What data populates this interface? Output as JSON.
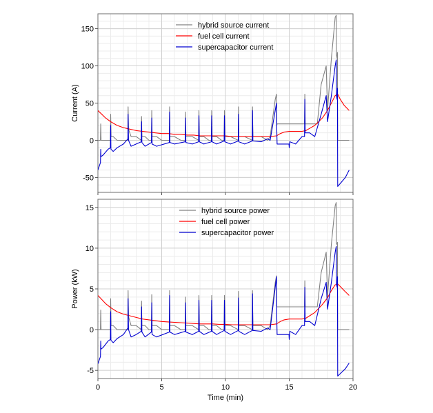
{
  "figure": {
    "xlabel": "Time (min)"
  },
  "chart_data": [
    {
      "type": "line",
      "title": "",
      "xlabel": "Time (min)",
      "ylabel": "Current (A)",
      "xlim": [
        0,
        20
      ],
      "ylim": [
        -70,
        170
      ],
      "xticks": [
        0,
        5,
        10,
        15,
        20
      ],
      "yticks": [
        -50,
        0,
        50,
        100,
        150
      ],
      "xtick_labels": [
        "0",
        "5",
        "10",
        "15",
        "20"
      ],
      "ytick_labels": [
        "-50",
        "0",
        "50",
        "100",
        "150"
      ],
      "grid": true,
      "legend_position": "top-center",
      "series": [
        {
          "name": "hybrid source current",
          "color": "#808080",
          "x": [
            0,
            0.2,
            0.22,
            0.25,
            0.6,
            0.8,
            0.98,
            1.0,
            1.03,
            1.2,
            1.5,
            2.0,
            2.35,
            2.37,
            2.4,
            2.6,
            3.0,
            3.4,
            3.42,
            3.45,
            3.7,
            4.0,
            4.2,
            4.22,
            4.25,
            4.6,
            5.0,
            5.5,
            5.6,
            5.62,
            5.65,
            6.0,
            6.5,
            6.85,
            6.87,
            6.9,
            7.4,
            7.9,
            7.92,
            7.95,
            8.3,
            8.7,
            8.9,
            8.92,
            8.95,
            9.3,
            9.7,
            9.9,
            9.92,
            9.95,
            10.4,
            11.0,
            11.02,
            11.05,
            11.5,
            12.1,
            12.12,
            12.15,
            12.8,
            13.3,
            13.5,
            13.9,
            14.0,
            14.02,
            14.05,
            14.5,
            15.0,
            15.5,
            16.0,
            16.2,
            16.22,
            16.25,
            16.6,
            17.0,
            17.2,
            17.5,
            17.9,
            18.0,
            18.3,
            18.6,
            18.68,
            18.7,
            18.75,
            18.78,
            18.8,
            19.0,
            19.5,
            19.7
          ],
          "y": [
            0,
            0,
            22,
            0,
            0,
            0,
            0,
            35,
            5,
            5,
            0,
            0,
            0,
            45,
            15,
            5,
            5,
            0,
            32,
            5,
            5,
            0,
            0,
            40,
            5,
            5,
            0,
            0,
            0,
            45,
            5,
            5,
            0,
            0,
            38,
            5,
            5,
            0,
            40,
            5,
            5,
            0,
            0,
            40,
            5,
            5,
            0,
            0,
            40,
            5,
            5,
            0,
            45,
            5,
            5,
            0,
            45,
            5,
            5,
            0,
            5,
            55,
            62,
            20,
            22,
            22,
            22,
            22,
            22,
            22,
            62,
            22,
            22,
            22,
            22,
            75,
            100,
            40,
            110,
            165,
            168,
            115,
            110,
            118,
            0,
            0,
            0,
            0
          ]
        },
        {
          "name": "fuel cell current",
          "color": "#ff0000",
          "x": [
            0,
            0.3,
            0.6,
            1.0,
            1.5,
            2.0,
            2.5,
            3.0,
            3.5,
            4.0,
            4.5,
            5.0,
            5.5,
            6.0,
            6.5,
            7.0,
            7.5,
            8.0,
            8.5,
            9.0,
            9.5,
            10.0,
            10.5,
            11.0,
            11.5,
            12.0,
            12.5,
            13.0,
            13.5,
            14.0,
            14.3,
            14.6,
            15.0,
            15.5,
            16.0,
            16.3,
            16.6,
            17.0,
            17.3,
            17.6,
            18.0,
            18.3,
            18.6,
            18.8,
            19.0,
            19.3,
            19.7
          ],
          "y": [
            40,
            35,
            30,
            25,
            20,
            17,
            15,
            13,
            12,
            11,
            10,
            9,
            9,
            8,
            8,
            7,
            7,
            6,
            6,
            6,
            6,
            6,
            5,
            5,
            5,
            5,
            5,
            5,
            5,
            6,
            9,
            11,
            12,
            12,
            12,
            13,
            16,
            20,
            25,
            30,
            40,
            50,
            60,
            62,
            55,
            47,
            40
          ]
        },
        {
          "name": "supercapacitor current",
          "color": "#0000d0",
          "x": [
            0,
            0.2,
            0.22,
            0.24,
            0.4,
            0.8,
            0.98,
            1.0,
            1.02,
            1.2,
            1.5,
            2.0,
            2.35,
            2.37,
            2.4,
            2.6,
            3.0,
            3.4,
            3.42,
            3.45,
            3.7,
            4.2,
            4.22,
            4.25,
            4.6,
            5.6,
            5.62,
            5.65,
            6.0,
            6.85,
            6.87,
            6.9,
            7.4,
            7.9,
            7.92,
            7.95,
            8.3,
            8.9,
            8.92,
            8.95,
            9.3,
            9.9,
            9.92,
            9.95,
            10.4,
            11.0,
            11.02,
            11.05,
            11.5,
            12.1,
            12.12,
            12.15,
            12.8,
            13.3,
            13.5,
            14.0,
            14.02,
            14.05,
            14.5,
            14.98,
            15.0,
            15.05,
            15.5,
            16.0,
            16.2,
            16.22,
            16.25,
            16.6,
            17.0,
            17.5,
            17.9,
            18.0,
            18.3,
            18.6,
            18.68,
            18.7,
            18.75,
            18.78,
            18.8,
            19.0,
            19.4,
            19.7
          ],
          "y": [
            -40,
            -30,
            -12,
            -22,
            -20,
            -12,
            -10,
            20,
            -12,
            -15,
            -10,
            -5,
            2,
            35,
            0,
            -8,
            -5,
            -2,
            25,
            -3,
            -8,
            -3,
            30,
            -5,
            -8,
            -3,
            38,
            -3,
            -5,
            -2,
            30,
            -3,
            -5,
            -2,
            33,
            -2,
            -5,
            -2,
            33,
            -2,
            -5,
            -1,
            33,
            -2,
            -5,
            -1,
            35,
            -2,
            -5,
            -1,
            40,
            -1,
            -2,
            2,
            0,
            50,
            15,
            -5,
            -5,
            -5,
            -10,
            -2,
            -5,
            5,
            5,
            55,
            10,
            10,
            5,
            35,
            60,
            25,
            60,
            100,
            108,
            60,
            55,
            70,
            -62,
            -58,
            -50,
            -40
          ]
        }
      ]
    },
    {
      "type": "line",
      "title": "",
      "xlabel": "Time (min)",
      "ylabel": "Power (kW)",
      "xlim": [
        0,
        20
      ],
      "ylim": [
        -6,
        16
      ],
      "xticks": [
        0,
        5,
        10,
        15,
        20
      ],
      "yticks": [
        -5,
        0,
        5,
        10,
        15
      ],
      "xtick_labels": [
        "0",
        "5",
        "10",
        "15",
        "20"
      ],
      "ytick_labels": [
        "-5",
        "0",
        "5",
        "10",
        "15"
      ],
      "grid": true,
      "legend_position": "top-center",
      "series": [
        {
          "name": "hybrid source power",
          "color": "#808080",
          "x": [
            0,
            0.2,
            0.22,
            0.25,
            0.6,
            0.8,
            0.98,
            1.0,
            1.03,
            1.2,
            1.5,
            2.0,
            2.35,
            2.37,
            2.4,
            2.6,
            3.0,
            3.4,
            3.42,
            3.45,
            3.7,
            4.0,
            4.2,
            4.22,
            4.25,
            4.6,
            5.0,
            5.5,
            5.6,
            5.62,
            5.65,
            6.0,
            6.5,
            6.85,
            6.87,
            6.9,
            7.4,
            7.9,
            7.92,
            7.95,
            8.3,
            8.7,
            8.9,
            8.92,
            8.95,
            9.3,
            9.7,
            9.9,
            9.92,
            9.95,
            10.4,
            11.0,
            11.02,
            11.05,
            11.5,
            12.1,
            12.12,
            12.15,
            12.8,
            13.3,
            13.5,
            13.9,
            14.0,
            14.02,
            14.05,
            14.5,
            15.0,
            15.5,
            16.0,
            16.2,
            16.22,
            16.25,
            16.6,
            17.0,
            17.2,
            17.5,
            17.9,
            18.0,
            18.3,
            18.6,
            18.68,
            18.7,
            18.75,
            18.78,
            18.8,
            19.0,
            19.5,
            19.7
          ],
          "y": [
            0,
            0,
            2.4,
            0,
            0,
            0,
            0,
            3.8,
            0.5,
            0.5,
            0,
            0,
            0,
            4.8,
            1.6,
            0.5,
            0.5,
            0,
            3.5,
            0.5,
            0.5,
            0,
            0,
            4.3,
            0.5,
            0.5,
            0,
            0,
            0,
            4.8,
            0.5,
            0.5,
            0,
            0,
            4.0,
            0.5,
            0.5,
            0,
            4.2,
            0.5,
            0.5,
            0,
            0,
            4.2,
            0.5,
            0.5,
            0,
            0,
            4.2,
            0.5,
            0.5,
            0,
            4.7,
            0.5,
            0.5,
            0,
            4.8,
            0.5,
            0.5,
            0,
            0.5,
            5.8,
            6.6,
            2.8,
            2.8,
            2.8,
            2.8,
            2.8,
            2.8,
            2.8,
            6.0,
            2.8,
            2.8,
            2.8,
            2.8,
            7.0,
            9.5,
            4.0,
            10.5,
            15.2,
            15.6,
            10.6,
            10.4,
            10.7,
            0,
            0,
            0,
            0
          ]
        },
        {
          "name": "fuel cell power",
          "color": "#ff0000",
          "x": [
            0,
            0.3,
            0.6,
            1.0,
            1.5,
            2.0,
            2.5,
            3.0,
            3.5,
            4.0,
            4.5,
            5.0,
            5.5,
            6.0,
            6.5,
            7.0,
            7.5,
            8.0,
            8.5,
            9.0,
            9.5,
            10.0,
            10.5,
            11.0,
            11.5,
            12.0,
            12.5,
            13.0,
            13.5,
            14.0,
            14.3,
            14.6,
            15.0,
            15.5,
            16.0,
            16.3,
            16.6,
            17.0,
            17.3,
            17.6,
            18.0,
            18.3,
            18.6,
            18.8,
            19.0,
            19.3,
            19.7
          ],
          "y": [
            4.2,
            3.7,
            3.2,
            2.7,
            2.2,
            1.9,
            1.7,
            1.5,
            1.3,
            1.2,
            1.1,
            1.0,
            0.95,
            0.9,
            0.85,
            0.8,
            0.75,
            0.7,
            0.7,
            0.7,
            0.65,
            0.65,
            0.6,
            0.6,
            0.6,
            0.6,
            0.6,
            0.6,
            0.6,
            0.7,
            1.0,
            1.2,
            1.3,
            1.3,
            1.3,
            1.4,
            1.7,
            2.1,
            2.6,
            3.1,
            3.9,
            4.8,
            5.5,
            5.6,
            5.3,
            4.8,
            4.2
          ]
        },
        {
          "name": "supercapacitor power",
          "color": "#0000d0",
          "x": [
            0,
            0.2,
            0.22,
            0.24,
            0.4,
            0.8,
            0.98,
            1.0,
            1.02,
            1.2,
            1.5,
            2.0,
            2.35,
            2.37,
            2.4,
            2.6,
            3.0,
            3.4,
            3.42,
            3.45,
            3.7,
            4.2,
            4.22,
            4.25,
            4.6,
            5.6,
            5.62,
            5.65,
            6.0,
            6.85,
            6.87,
            6.9,
            7.4,
            7.9,
            7.92,
            7.95,
            8.3,
            8.9,
            8.92,
            8.95,
            9.3,
            9.9,
            9.92,
            9.95,
            10.4,
            11.0,
            11.02,
            11.05,
            11.5,
            12.1,
            12.12,
            12.15,
            12.8,
            13.3,
            13.5,
            14.0,
            14.02,
            14.05,
            14.5,
            14.98,
            15.0,
            15.05,
            15.5,
            16.0,
            16.2,
            16.22,
            16.25,
            16.6,
            17.0,
            17.5,
            17.9,
            18.0,
            18.3,
            18.6,
            18.68,
            18.7,
            18.75,
            18.78,
            18.8,
            19.0,
            19.4,
            19.7
          ],
          "y": [
            -4.2,
            -3.3,
            -1.4,
            -2.4,
            -2.2,
            -1.4,
            -1.2,
            2.2,
            -1.3,
            -1.6,
            -1.1,
            -0.6,
            0.2,
            3.8,
            0.0,
            -0.9,
            -0.6,
            -0.2,
            2.8,
            -0.3,
            -0.9,
            -0.3,
            3.3,
            -0.6,
            -0.9,
            -0.3,
            4.2,
            -0.3,
            -0.6,
            -0.2,
            3.3,
            -0.3,
            -0.6,
            -0.2,
            3.6,
            -0.2,
            -0.6,
            -0.2,
            3.6,
            -0.2,
            -0.6,
            -0.1,
            3.6,
            -0.2,
            -0.6,
            -0.1,
            3.9,
            -0.2,
            -0.6,
            -0.1,
            4.4,
            -0.1,
            -0.2,
            0.2,
            0.0,
            6.5,
            1.6,
            -0.6,
            -0.6,
            -0.6,
            -1.2,
            -0.2,
            -0.6,
            0.5,
            0.5,
            5.2,
            1.0,
            1.0,
            0.5,
            3.8,
            5.8,
            2.5,
            5.8,
            9.5,
            10.2,
            5.6,
            5.2,
            6.5,
            -5.7,
            -5.4,
            -4.8,
            -4.1
          ]
        }
      ]
    }
  ]
}
